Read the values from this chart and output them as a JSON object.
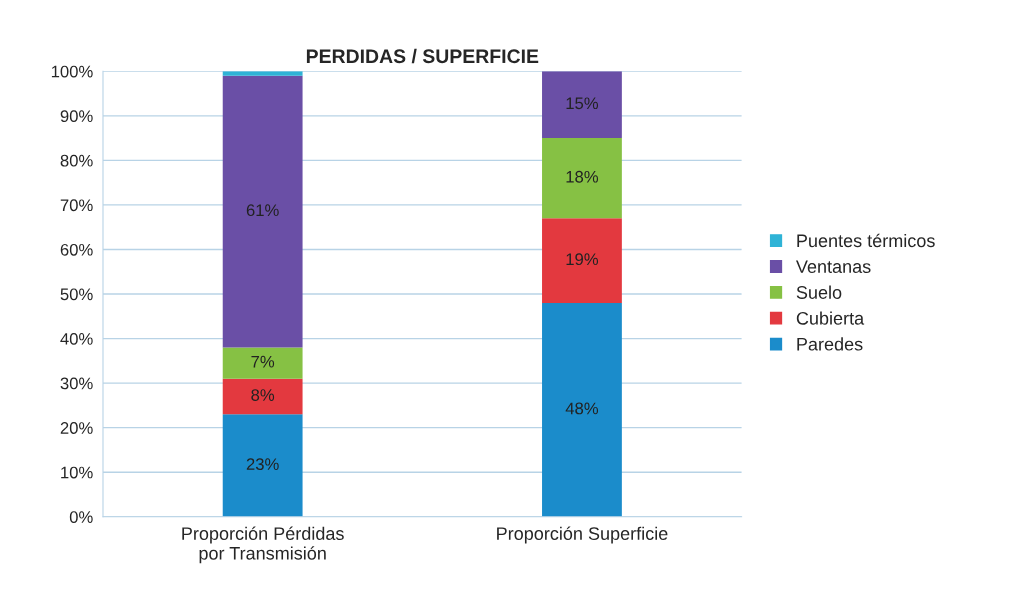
{
  "chart_data": {
    "type": "bar",
    "stacked": true,
    "title": "PERDIDAS / SUPERFICIE",
    "categories": [
      "Proporción Pérdidas\npor Transmisión",
      "Proporción Superficie"
    ],
    "series": [
      {
        "name": "Paredes",
        "color": "#1b8ccb",
        "values": [
          23,
          48
        ],
        "value_labels": [
          "23%",
          "48%"
        ]
      },
      {
        "name": "Cubierta",
        "color": "#e3393f",
        "values": [
          8,
          19
        ],
        "value_labels": [
          "8%",
          "19%"
        ]
      },
      {
        "name": "Suelo",
        "color": "#86c144",
        "values": [
          7,
          18
        ],
        "value_labels": [
          "7%",
          "18%"
        ]
      },
      {
        "name": "Ventanas",
        "color": "#6a4fa6",
        "values": [
          61,
          15
        ],
        "value_labels": [
          "61%",
          "15%"
        ]
      },
      {
        "name": "Puentes térmicos",
        "color": "#2fb3d6",
        "values": [
          1,
          0
        ],
        "value_labels": [
          null,
          null
        ]
      }
    ],
    "ylim": [
      0,
      100
    ],
    "yticks": [
      {
        "value": 0,
        "label": "0%"
      },
      {
        "value": 10,
        "label": "10%"
      },
      {
        "value": 20,
        "label": "20%"
      },
      {
        "value": 30,
        "label": "30%"
      },
      {
        "value": 40,
        "label": "40%"
      },
      {
        "value": 50,
        "label": "50%"
      },
      {
        "value": 60,
        "label": "60%"
      },
      {
        "value": 70,
        "label": "70%"
      },
      {
        "value": 80,
        "label": "80%"
      },
      {
        "value": 90,
        "label": "90%"
      },
      {
        "value": 100,
        "label": "100%"
      }
    ],
    "grid": "y",
    "legend": "right"
  }
}
